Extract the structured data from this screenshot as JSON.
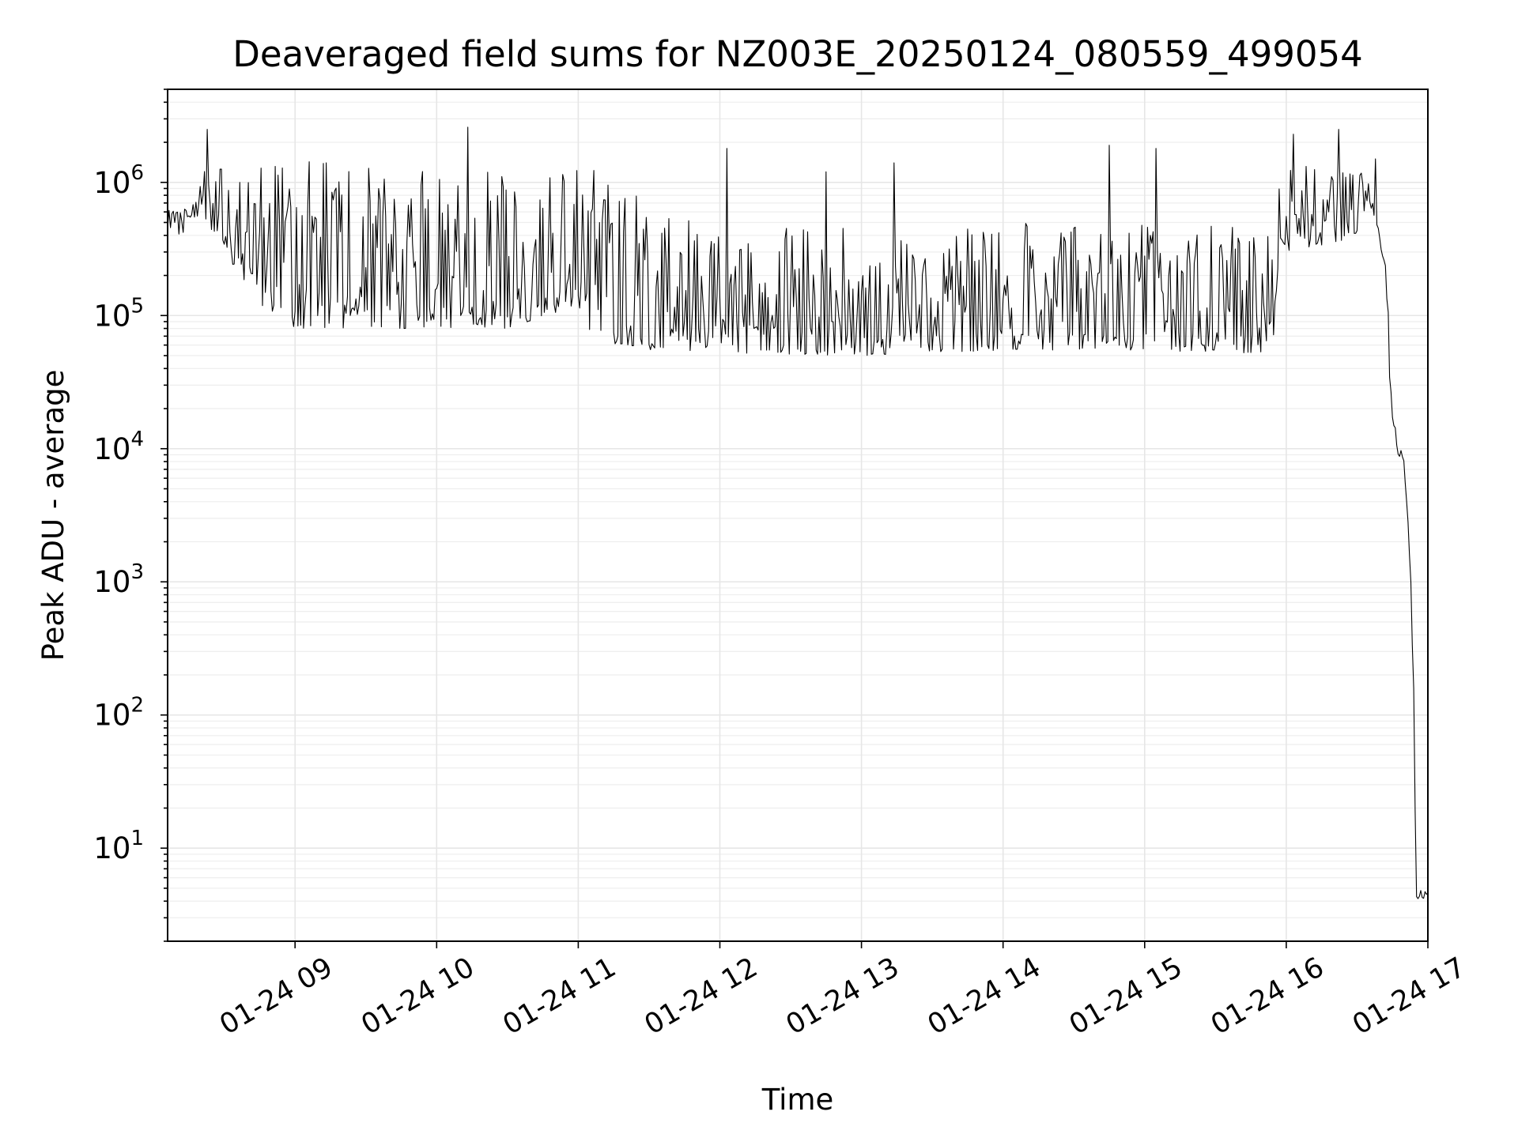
{
  "chart_data": {
    "type": "line",
    "title": "Deaveraged field sums for NZ003E_20250124_080559_499054",
    "xlabel": "Time",
    "ylabel": "Peak ADU - average",
    "y_scale": "log",
    "ylim": [
      2,
      5000000
    ],
    "xlim": [
      "01-24 08:06",
      "01-24 17:00"
    ],
    "grid": "on",
    "x_tick_labels": [
      "01-24 09",
      "01-24 10",
      "01-24 11",
      "01-24 12",
      "01-24 13",
      "01-24 14",
      "01-24 15",
      "01-24 16",
      "01-24 17"
    ],
    "x_tick_hours": [
      9,
      10,
      11,
      12,
      13,
      14,
      15,
      16,
      17
    ],
    "y_ticks": [
      10,
      100,
      1000,
      10000,
      100000,
      1000000
    ],
    "y_tick_labels": [
      {
        "base": "10",
        "exp": "1"
      },
      {
        "base": "10",
        "exp": "2"
      },
      {
        "base": "10",
        "exp": "3"
      },
      {
        "base": "10",
        "exp": "4"
      },
      {
        "base": "10",
        "exp": "5"
      },
      {
        "base": "10",
        "exp": "6"
      }
    ],
    "series": [
      {
        "color": "#000000",
        "envelope": [
          {
            "t": "08:06",
            "low": 400000,
            "high": 700000
          },
          {
            "t": "08:15",
            "low": 400000,
            "high": 700000
          },
          {
            "t": "08:22",
            "low": 500000,
            "high": 1300000
          },
          {
            "t": "08:30",
            "low": 300000,
            "high": 1300000
          },
          {
            "t": "08:45",
            "low": 120000,
            "high": 1400000
          },
          {
            "t": "09:00",
            "low": 80000,
            "high": 1500000
          },
          {
            "t": "09:30",
            "low": 80000,
            "high": 1500000
          },
          {
            "t": "10:00",
            "low": 80000,
            "high": 1500000
          },
          {
            "t": "10:30",
            "low": 80000,
            "high": 1300000
          },
          {
            "t": "11:00",
            "low": 120000,
            "high": 1400000
          },
          {
            "t": "11:06",
            "low": 65000,
            "high": 1300000
          },
          {
            "t": "11:30",
            "low": 55000,
            "high": 700000
          },
          {
            "t": "12:00",
            "low": 52000,
            "high": 500000
          },
          {
            "t": "13:00",
            "low": 50000,
            "high": 450000
          },
          {
            "t": "14:00",
            "low": 55000,
            "high": 500000
          },
          {
            "t": "15:00",
            "low": 55000,
            "high": 500000
          },
          {
            "t": "15:55",
            "low": 50000,
            "high": 500000
          },
          {
            "t": "15:57",
            "low": 300000,
            "high": 1200000
          },
          {
            "t": "16:20",
            "low": 350000,
            "high": 1500000
          },
          {
            "t": "16:30",
            "low": 400000,
            "high": 1300000
          },
          {
            "t": "16:35",
            "low": 700000,
            "high": 1000000
          },
          {
            "t": "16:38",
            "low": 500000,
            "high": 600000
          },
          {
            "t": "16:40",
            "low": 300000,
            "high": 350000
          },
          {
            "t": "16:42",
            "low": 180000,
            "high": 250000
          },
          {
            "t": "16:43",
            "low": 100000,
            "high": 150000
          },
          {
            "t": "16:44",
            "low": 20000,
            "high": 40000
          },
          {
            "t": "16:45",
            "low": 15000,
            "high": 20000
          },
          {
            "t": "16:47",
            "low": 9000,
            "high": 12000
          },
          {
            "t": "16:50",
            "low": 7000,
            "high": 9000
          },
          {
            "t": "16:52",
            "low": 2000,
            "high": 3000
          },
          {
            "t": "16:53",
            "low": 500,
            "high": 800
          },
          {
            "t": "16:54",
            "low": 150,
            "high": 200
          },
          {
            "t": "16:55",
            "low": 4,
            "high": 5
          },
          {
            "t": "17:00",
            "low": 4,
            "high": 5
          }
        ],
        "spikes": [
          {
            "t": "08:23",
            "value": 2500000
          },
          {
            "t": "10:13",
            "value": 2600000
          },
          {
            "t": "12:03",
            "value": 1800000
          },
          {
            "t": "12:45",
            "value": 1200000
          },
          {
            "t": "13:14",
            "value": 1400000
          },
          {
            "t": "14:45",
            "value": 1900000
          },
          {
            "t": "15:05",
            "value": 1800000
          },
          {
            "t": "16:03",
            "value": 2300000
          },
          {
            "t": "16:22",
            "value": 2500000
          },
          {
            "t": "16:38",
            "value": 1500000
          }
        ]
      }
    ]
  }
}
